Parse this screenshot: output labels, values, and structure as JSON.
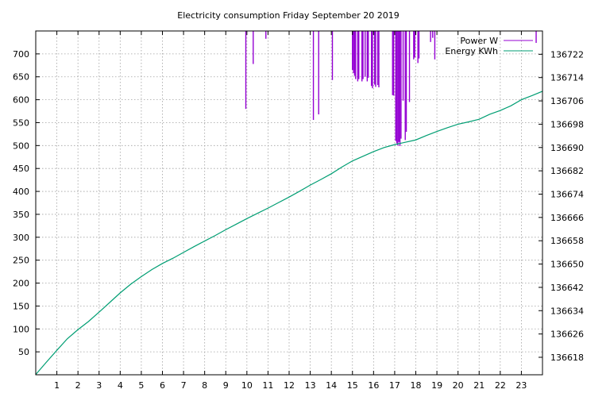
{
  "chart_data": {
    "type": "line",
    "title": "Electricity consumption Friday September 20 2019",
    "xlabel": "",
    "ylabel": "",
    "y2label": "",
    "grid": true,
    "legend_position": "top-right",
    "xlim": [
      0,
      24
    ],
    "ylim": [
      0,
      750
    ],
    "y2lim": [
      136612,
      136730
    ],
    "x_ticks": [
      1,
      2,
      3,
      4,
      5,
      6,
      7,
      8,
      9,
      10,
      11,
      12,
      13,
      14,
      15,
      16,
      17,
      18,
      19,
      20,
      21,
      22,
      23
    ],
    "y_ticks": [
      50,
      100,
      150,
      200,
      250,
      300,
      350,
      400,
      450,
      500,
      550,
      600,
      650,
      700
    ],
    "y2_ticks": [
      136618,
      136626,
      136634,
      136642,
      136650,
      136658,
      136666,
      136674,
      136682,
      136690,
      136698,
      136706,
      136714,
      136722
    ],
    "series": [
      {
        "name": "Power W",
        "axis": "y",
        "style": "impulses",
        "color": "#9400d3",
        "x": [
          9.95,
          10.3,
          10.9,
          13.15,
          13.4,
          14.05,
          15.0,
          15.05,
          15.1,
          15.15,
          15.25,
          15.3,
          15.45,
          15.5,
          15.6,
          15.7,
          15.75,
          15.9,
          15.95,
          16.05,
          16.1,
          16.2,
          16.25,
          16.9,
          16.95,
          17.05,
          17.1,
          17.15,
          17.2,
          17.25,
          17.3,
          17.4,
          17.5,
          17.55,
          17.7,
          17.9,
          17.95,
          18.1,
          18.15,
          18.7,
          18.8,
          18.9,
          23.7
        ],
        "values": [
          580,
          678,
          733,
          556,
          568,
          643,
          665,
          658,
          652,
          645,
          640,
          645,
          640,
          645,
          650,
          640,
          648,
          630,
          625,
          633,
          628,
          632,
          627,
          610,
          609,
          510,
          505,
          500,
          508,
          499,
          515,
          598,
          512,
          530,
          595,
          688,
          692,
          680,
          690,
          726,
          735,
          688,
          724
        ]
      },
      {
        "name": "Energy KWh",
        "axis": "y2",
        "style": "line",
        "color": "#009e73",
        "x": [
          0,
          0.5,
          1.0,
          1.5,
          2.0,
          2.5,
          3.0,
          3.5,
          4.0,
          4.5,
          5.0,
          5.5,
          6.0,
          6.5,
          7.0,
          7.5,
          8.0,
          8.5,
          9.0,
          9.5,
          10.0,
          10.5,
          11.0,
          11.5,
          12.0,
          12.5,
          13.0,
          13.5,
          14.0,
          14.5,
          15.0,
          15.5,
          16.0,
          16.5,
          17.0,
          17.5,
          18.0,
          18.5,
          19.0,
          19.5,
          20.0,
          20.5,
          21.0,
          21.5,
          22.0,
          22.5,
          23.0,
          23.5,
          24.0
        ],
        "values": [
          136612.1,
          136616.3,
          136620.4,
          136624.4,
          136627.5,
          136630.3,
          136633.5,
          136636.8,
          136640.1,
          136643.1,
          136645.7,
          136648.1,
          136650.2,
          136652.0,
          136654.0,
          136656.0,
          136657.9,
          136659.8,
          136661.8,
          136663.7,
          136665.6,
          136667.4,
          136669.2,
          136671.1,
          136673.0,
          136675.0,
          136677.1,
          136679.0,
          136681.0,
          136683.3,
          136685.4,
          136687.0,
          136688.6,
          136690.0,
          136691.0,
          136691.8,
          136692.6,
          136694.1,
          136695.5,
          136696.8,
          136698.0,
          136698.8,
          136699.7,
          136701.4,
          136702.7,
          136704.3,
          136706.4,
          136707.8,
          136709.3
        ]
      }
    ]
  }
}
